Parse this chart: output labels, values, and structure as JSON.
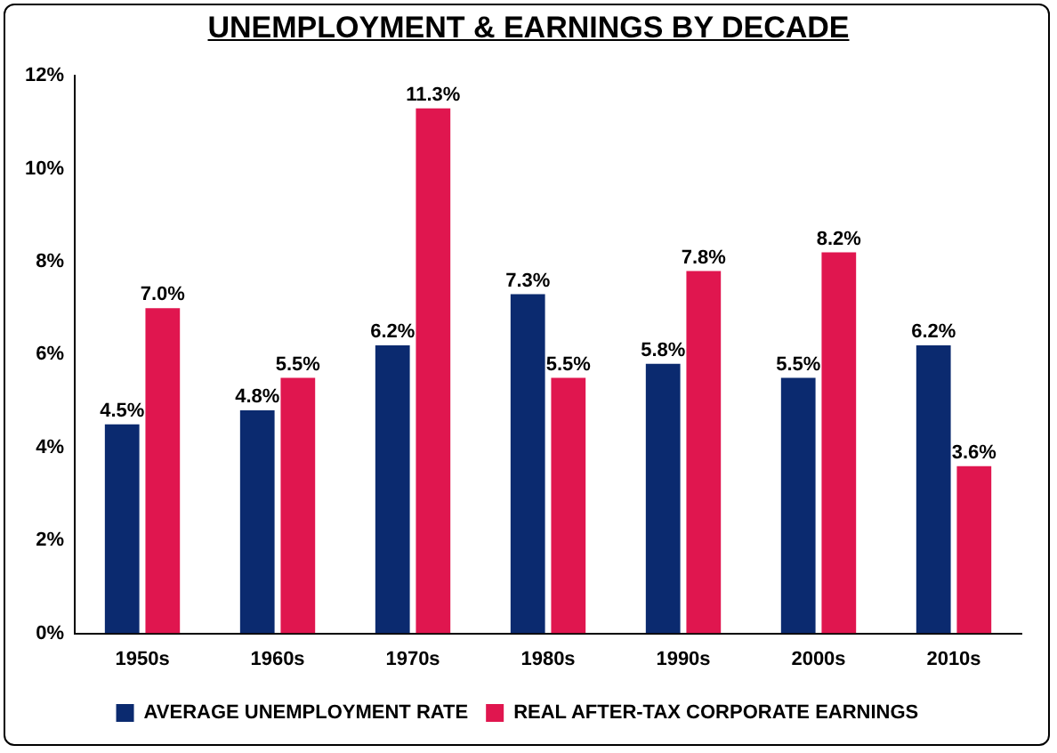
{
  "chart_data": {
    "type": "bar",
    "title": "UNEMPLOYMENT & EARNINGS BY DECADE",
    "categories": [
      "1950s",
      "1960s",
      "1970s",
      "1980s",
      "1990s",
      "2000s",
      "2010s"
    ],
    "series": [
      {
        "name": "AVERAGE UNEMPLOYMENT RATE",
        "color": "#0b2a6f",
        "values": [
          4.5,
          4.8,
          6.2,
          7.3,
          5.8,
          5.5,
          6.2
        ],
        "value_labels": [
          "4.5%",
          "4.8%",
          "6.2%",
          "7.3%",
          "5.8%",
          "5.5%",
          "6.2%"
        ]
      },
      {
        "name": "REAL AFTER-TAX CORPORATE EARNINGS",
        "color": "#e0164f",
        "values": [
          7.0,
          5.5,
          11.3,
          5.5,
          7.8,
          8.2,
          3.6
        ],
        "value_labels": [
          "7.0%",
          "5.5%",
          "11.3%",
          "5.5%",
          "7.8%",
          "8.2%",
          "3.6%"
        ]
      }
    ],
    "ylim": [
      0,
      12
    ],
    "yticks": [
      {
        "value": 0,
        "label": "0%"
      },
      {
        "value": 2,
        "label": "2%"
      },
      {
        "value": 4,
        "label": "4%"
      },
      {
        "value": 6,
        "label": "6%"
      },
      {
        "value": 8,
        "label": "8%"
      },
      {
        "value": 10,
        "label": "10%"
      },
      {
        "value": 12,
        "label": "12%"
      }
    ],
    "grid": false,
    "legend": "bottom"
  }
}
